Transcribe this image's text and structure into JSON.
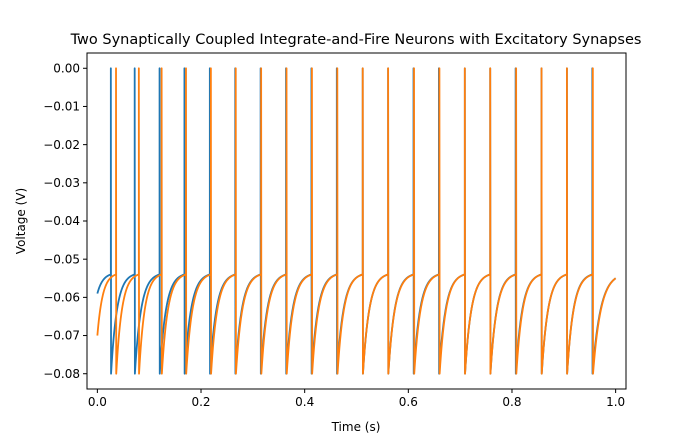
{
  "chart_data": {
    "type": "line",
    "title": "Two Synaptically Coupled Integrate-and-Fire Neurons with Excitatory Synapses",
    "xlabel": "Time (s)",
    "ylabel": "Voltage (V)",
    "xlim": [
      -0.02,
      1.02
    ],
    "ylim": [
      -0.084,
      0.004
    ],
    "xticks": [
      0.0,
      0.2,
      0.4,
      0.6,
      0.8,
      1.0
    ],
    "xtick_labels": [
      "0.0",
      "0.2",
      "0.4",
      "0.6",
      "0.8",
      "1.0"
    ],
    "yticks": [
      0.0,
      -0.01,
      -0.02,
      -0.03,
      -0.04,
      -0.05,
      -0.06,
      -0.07,
      -0.08
    ],
    "ytick_labels": [
      "0.00",
      "−0.01",
      "−0.02",
      "−0.03",
      "−0.04",
      "−0.05",
      "−0.06",
      "−0.07",
      "−0.08"
    ],
    "grid": false,
    "legend": false,
    "reset_voltage": -0.08,
    "spike_peak": 0.0,
    "threshold": -0.054,
    "series": [
      {
        "color": "#1f77b4",
        "initial_voltage": -0.059,
        "spike_times": [
          0.026,
          0.072,
          0.12,
          0.168,
          0.217,
          0.266,
          0.315,
          0.364,
          0.413,
          0.462,
          0.512,
          0.561,
          0.61,
          0.659,
          0.709,
          0.758,
          0.807,
          0.857,
          0.906,
          0.955
        ],
        "end_time": 1.0,
        "end_voltage": -0.055
      },
      {
        "color": "#ff7f0e",
        "initial_voltage": -0.07,
        "spike_times": [
          0.036,
          0.08,
          0.124,
          0.171,
          0.219,
          0.267,
          0.316,
          0.365,
          0.414,
          0.463,
          0.512,
          0.561,
          0.611,
          0.66,
          0.709,
          0.758,
          0.808,
          0.857,
          0.906,
          0.956
        ],
        "end_time": 1.0,
        "end_voltage": -0.055
      }
    ]
  }
}
